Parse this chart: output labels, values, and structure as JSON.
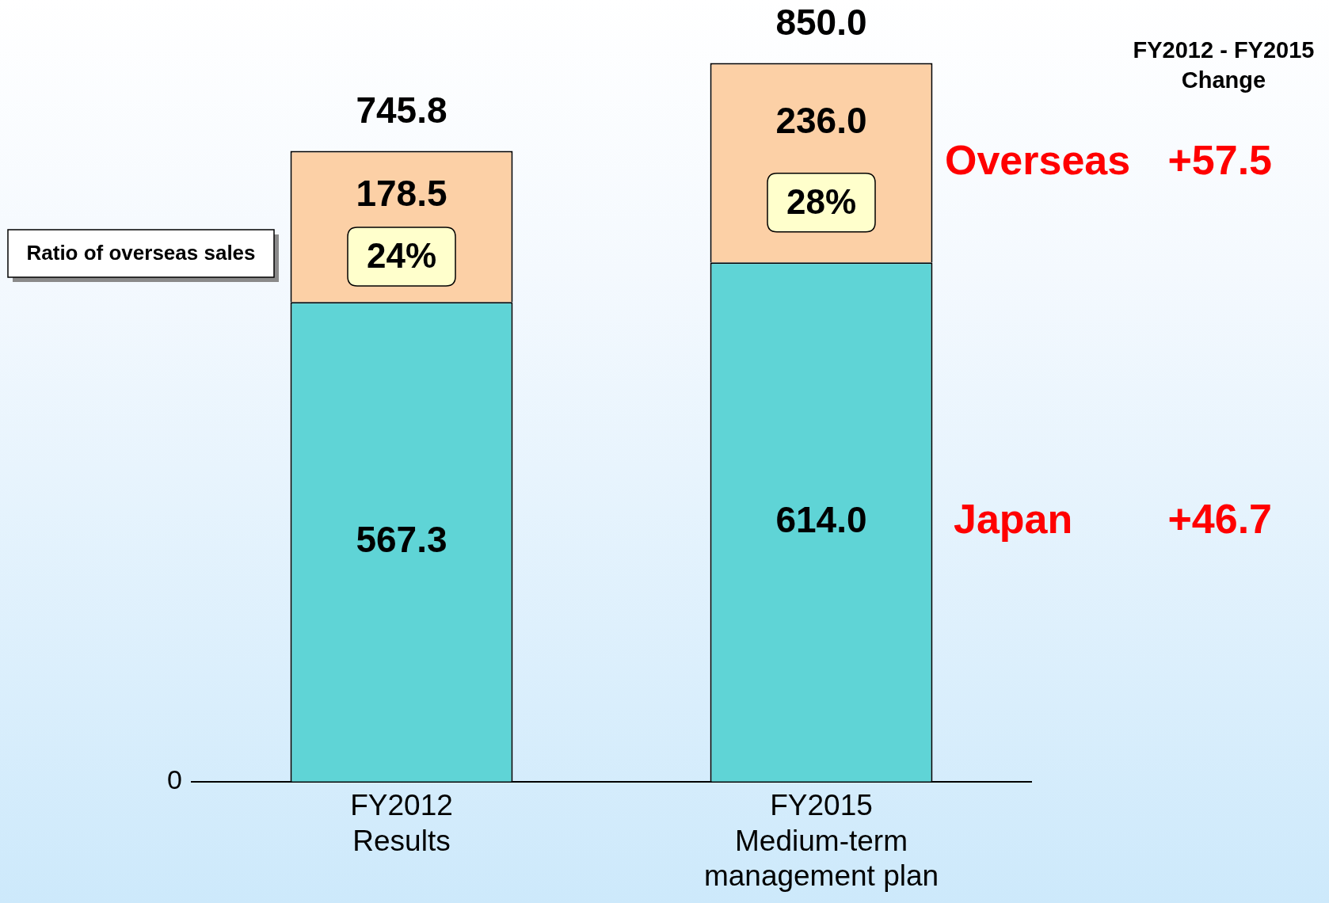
{
  "chart_data": {
    "type": "bar",
    "stacked": true,
    "categories": [
      "FY2012\nResults",
      "FY2015\nMedium-term\nmanagement plan"
    ],
    "series": [
      {
        "name": "Japan",
        "color": "#5fd4d6",
        "values": [
          567.3,
          614.0
        ],
        "value_labels": [
          "567.3",
          "614.0"
        ]
      },
      {
        "name": "Overseas",
        "color": "#fcd0a6",
        "values": [
          178.5,
          236.0
        ],
        "value_labels": [
          "178.5",
          "236.0"
        ]
      }
    ],
    "grid": false,
    "legend": false,
    "totals": [
      "745.8",
      "850.0"
    ],
    "annotations": [
      "Ratio of overseas sales",
      "24%",
      "28%",
      "FY2012 - FY2015\nChange",
      "+46.7",
      "+57.5",
      "0"
    ]
  }
}
